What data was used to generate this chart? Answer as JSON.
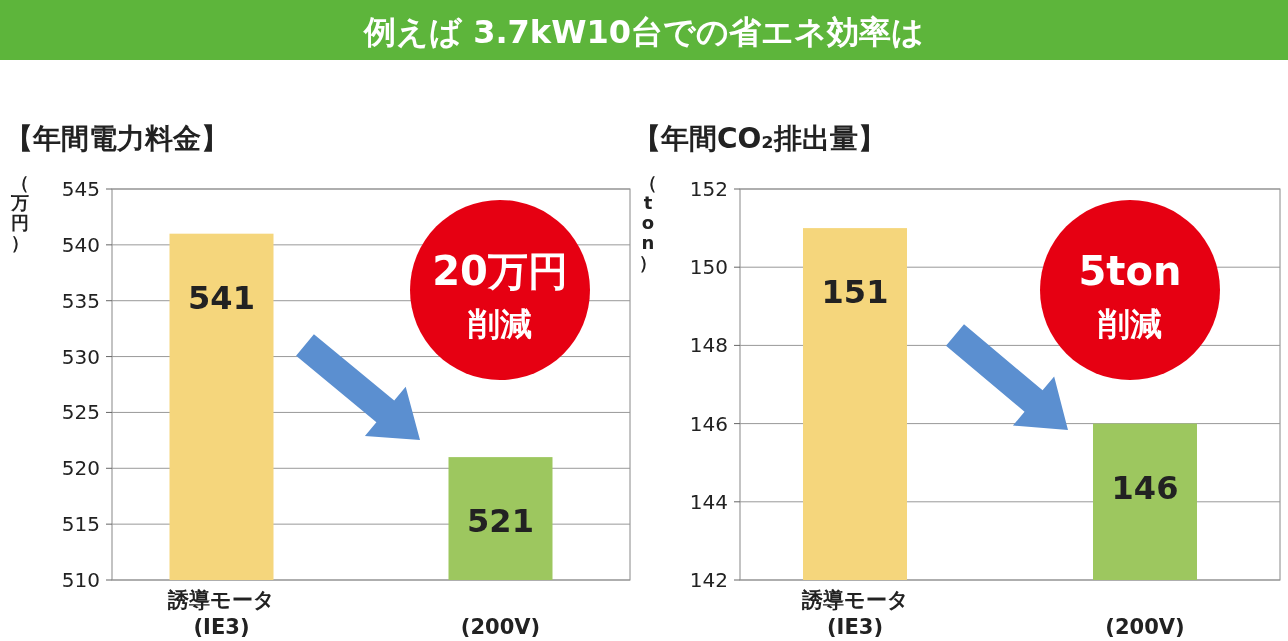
{
  "chart_data": [
    {
      "type": "other",
      "title": "例えば 3.7kW10台での省エネ効率は"
    },
    {
      "type": "bar",
      "title": "【年間電力料金】",
      "ylabel": "（万円）",
      "categories": [
        "誘導モータ\n(IE3)",
        "(200V)"
      ],
      "values": [
        541,
        521
      ],
      "colors": [
        "#f5d67c",
        "#9dc75f"
      ],
      "ylim": [
        510,
        545
      ],
      "yticks": [
        510,
        515,
        520,
        525,
        530,
        535,
        540,
        545
      ],
      "grid": "y",
      "data_labels": true,
      "annotations": [
        "20万円",
        "削減"
      ]
    },
    {
      "type": "bar",
      "title": "【年間CO₂排出量】",
      "ylabel": "（ton）",
      "categories": [
        "誘導モータ\n(IE3)",
        "(200V)"
      ],
      "values": [
        151,
        146
      ],
      "colors": [
        "#f5d67c",
        "#9dc75f"
      ],
      "ylim": [
        142,
        152
      ],
      "yticks": [
        142,
        144,
        146,
        148,
        150,
        152
      ],
      "grid": "y",
      "data_labels": true,
      "annotations": [
        "5ton",
        "削減"
      ]
    }
  ]
}
